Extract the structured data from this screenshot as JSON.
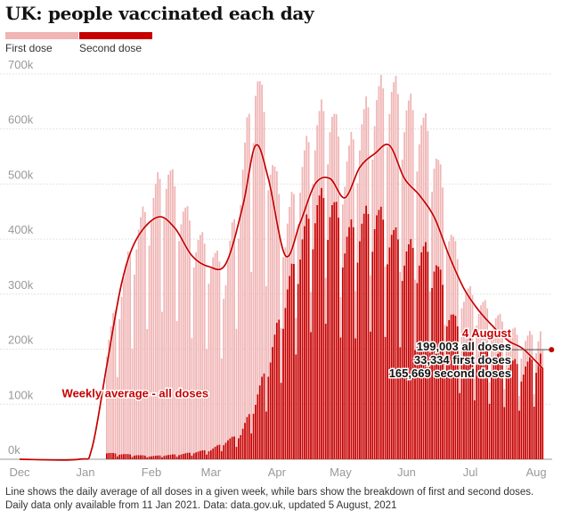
{
  "title": "UK: people vaccinated each day",
  "legend": [
    {
      "label": "First dose",
      "color": "#f0b5b5"
    },
    {
      "label": "Second dose",
      "color": "#c70000"
    }
  ],
  "footnote": [
    "Line shows the daily average of all doses in a given week, while bars show the breakdown of first and second doses.",
    "Daily data only available from 11 Jan 2021. Data: data.gov.uk, updated 5 August, 2021"
  ],
  "chart_data": {
    "type": "bar",
    "stacked": true,
    "x_range": [
      "2020-12-01",
      "2021-08-06"
    ],
    "y_range": [
      0,
      750000
    ],
    "y_ticks": [
      {
        "value": 0,
        "label": "0k"
      },
      {
        "value": 100000,
        "label": "100k"
      },
      {
        "value": 200000,
        "label": "200k"
      },
      {
        "value": 300000,
        "label": "300k"
      },
      {
        "value": 400000,
        "label": "400k"
      },
      {
        "value": 500000,
        "label": "500k"
      },
      {
        "value": 600000,
        "label": "600k"
      },
      {
        "value": 700000,
        "label": "700k"
      }
    ],
    "x_ticks": [
      {
        "date": "2020-12-01",
        "label": "Dec"
      },
      {
        "date": "2021-01-01",
        "label": "Jan"
      },
      {
        "date": "2021-02-01",
        "label": "Feb"
      },
      {
        "date": "2021-03-01",
        "label": "Mar"
      },
      {
        "date": "2021-04-01",
        "label": "Apr"
      },
      {
        "date": "2021-05-01",
        "label": "May"
      },
      {
        "date": "2021-06-01",
        "label": "Jun"
      },
      {
        "date": "2021-07-01",
        "label": "Jul"
      },
      {
        "date": "2021-08-01",
        "label": "Aug"
      }
    ],
    "grid": true,
    "bar_start": "2021-01-11",
    "bar_end": "2021-08-04",
    "first_dose_anchors": [
      [
        "2021-01-11",
        160000
      ],
      [
        "2021-01-18",
        260000
      ],
      [
        "2021-01-25",
        340000
      ],
      [
        "2021-02-01",
        390000
      ],
      [
        "2021-02-08",
        440000
      ],
      [
        "2021-02-15",
        380000
      ],
      [
        "2021-02-22",
        330000
      ],
      [
        "2021-03-01",
        300000
      ],
      [
        "2021-03-08",
        260000
      ],
      [
        "2021-03-15",
        380000
      ],
      [
        "2021-03-22",
        510000
      ],
      [
        "2021-03-29",
        310000
      ],
      [
        "2021-04-05",
        100000
      ],
      [
        "2021-04-12",
        110000
      ],
      [
        "2021-04-19",
        120000
      ],
      [
        "2021-04-26",
        140000
      ],
      [
        "2021-05-03",
        110000
      ],
      [
        "2021-05-10",
        150000
      ],
      [
        "2021-05-17",
        170000
      ],
      [
        "2021-05-24",
        220000
      ],
      [
        "2021-05-31",
        220000
      ],
      [
        "2021-06-07",
        200000
      ],
      [
        "2021-06-14",
        170000
      ],
      [
        "2021-06-21",
        130000
      ],
      [
        "2021-06-28",
        80000
      ],
      [
        "2021-07-05",
        70000
      ],
      [
        "2021-07-12",
        60000
      ],
      [
        "2021-07-19",
        50000
      ],
      [
        "2021-07-26",
        40000
      ],
      [
        "2021-08-04",
        33334
      ]
    ],
    "second_dose_anchors": [
      [
        "2021-01-11",
        10000
      ],
      [
        "2021-02-01",
        5000
      ],
      [
        "2021-02-15",
        8000
      ],
      [
        "2021-03-01",
        15000
      ],
      [
        "2021-03-15",
        40000
      ],
      [
        "2021-03-22",
        90000
      ],
      [
        "2021-03-29",
        160000
      ],
      [
        "2021-04-05",
        250000
      ],
      [
        "2021-04-12",
        330000
      ],
      [
        "2021-04-19",
        390000
      ],
      [
        "2021-04-26",
        400000
      ],
      [
        "2021-05-03",
        340000
      ],
      [
        "2021-05-10",
        360000
      ],
      [
        "2021-05-17",
        380000
      ],
      [
        "2021-05-24",
        350000
      ],
      [
        "2021-05-31",
        320000
      ],
      [
        "2021-06-07",
        320000
      ],
      [
        "2021-06-14",
        310000
      ],
      [
        "2021-06-21",
        230000
      ],
      [
        "2021-06-28",
        180000
      ],
      [
        "2021-07-05",
        170000
      ],
      [
        "2021-07-12",
        160000
      ],
      [
        "2021-07-19",
        150000
      ],
      [
        "2021-07-26",
        140000
      ],
      [
        "2021-08-04",
        165669
      ]
    ],
    "weekly_average": [
      [
        "2020-12-01",
        0
      ],
      [
        "2020-12-29",
        0
      ],
      [
        "2021-01-04",
        20000
      ],
      [
        "2021-01-11",
        170000
      ],
      [
        "2021-01-18",
        320000
      ],
      [
        "2021-01-25",
        400000
      ],
      [
        "2021-02-04",
        440000
      ],
      [
        "2021-02-12",
        420000
      ],
      [
        "2021-02-20",
        370000
      ],
      [
        "2021-02-28",
        350000
      ],
      [
        "2021-03-08",
        355000
      ],
      [
        "2021-03-16",
        460000
      ],
      [
        "2021-03-22",
        570000
      ],
      [
        "2021-03-28",
        510000
      ],
      [
        "2021-04-05",
        370000
      ],
      [
        "2021-04-12",
        430000
      ],
      [
        "2021-04-19",
        500000
      ],
      [
        "2021-04-26",
        510000
      ],
      [
        "2021-05-03",
        475000
      ],
      [
        "2021-05-10",
        530000
      ],
      [
        "2021-05-17",
        555000
      ],
      [
        "2021-05-24",
        570000
      ],
      [
        "2021-05-31",
        510000
      ],
      [
        "2021-06-07",
        480000
      ],
      [
        "2021-06-14",
        440000
      ],
      [
        "2021-06-21",
        370000
      ],
      [
        "2021-06-28",
        310000
      ],
      [
        "2021-07-05",
        270000
      ],
      [
        "2021-07-12",
        240000
      ],
      [
        "2021-07-19",
        215000
      ],
      [
        "2021-07-26",
        200000
      ],
      [
        "2021-08-04",
        165000
      ]
    ],
    "series": [
      {
        "name": "First dose",
        "color": "#f0b5b5"
      },
      {
        "name": "Second dose",
        "color": "#c70000"
      },
      {
        "name": "Weekly average - all doses",
        "color": "#c70000"
      }
    ],
    "line_label": "Weekly average - all doses",
    "line_label_at": {
      "date": "2021-01-05",
      "value": 100000
    },
    "annotation": {
      "date": "2021-08-04",
      "value": 199003,
      "lines": [
        "4 August",
        "199,003 all doses",
        "33,334 first doses",
        "165,669 second doses"
      ]
    },
    "colors": {
      "first": "#f0b5b5",
      "second": "#c70000",
      "line": "#c70000",
      "grid": "#dcdcdc",
      "axis_text": "#999999"
    }
  }
}
